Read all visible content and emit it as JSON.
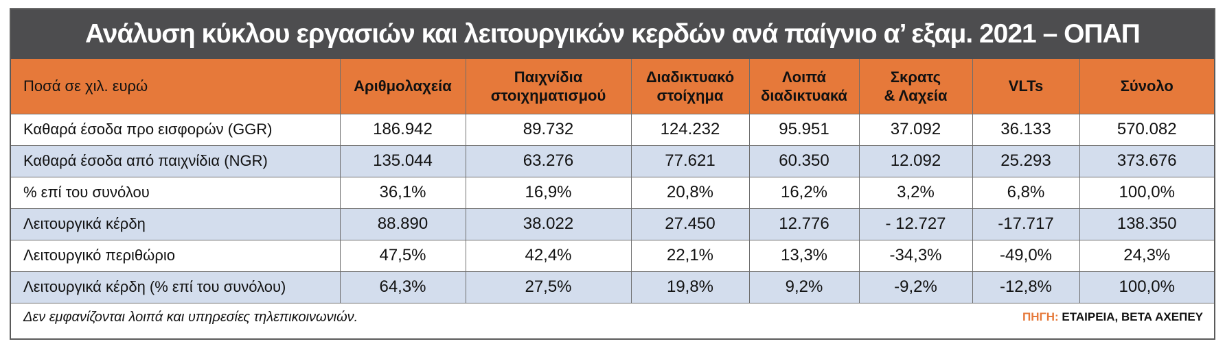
{
  "chart_data": {
    "type": "table",
    "title": "Ανάλυση κύκλου εργασιών και λειτουργικών κερδών ανά παίγνιο α’ εξαμ. 2021 – ΟΠΑΠ",
    "corner_label": "Ποσά σε χιλ. ευρώ",
    "columns": [
      {
        "line1": "Αριθμολαχεία",
        "line2": ""
      },
      {
        "line1": "Παιχνίδια",
        "line2": "στοιχηματισμού"
      },
      {
        "line1": "Διαδικτυακό",
        "line2": "στοίχημα"
      },
      {
        "line1": "Λοιπά",
        "line2": "διαδικτυακά"
      },
      {
        "line1": "Σκρατς",
        "line2": "& Λαχεία"
      },
      {
        "line1": "VLTs",
        "line2": ""
      },
      {
        "line1": "Σύνολο",
        "line2": ""
      }
    ],
    "rows": [
      {
        "label": "Καθαρά έσοδα προ εισφορών (GGR)",
        "values": [
          "186.942",
          "89.732",
          "124.232",
          "95.951",
          "37.092",
          "36.133",
          "570.082"
        ]
      },
      {
        "label": "Καθαρά έσοδα από παιχνίδια (NGR)",
        "values": [
          "135.044",
          "63.276",
          "77.621",
          "60.350",
          "12.092",
          "25.293",
          "373.676"
        ]
      },
      {
        "label": "% επί του συνόλου",
        "values": [
          "36,1%",
          "16,9%",
          "20,8%",
          "16,2%",
          "3,2%",
          "6,8%",
          "100,0%"
        ]
      },
      {
        "label": "Λειτουργικά κέρδη",
        "values": [
          "88.890",
          "38.022",
          "27.450",
          "12.776",
          "- 12.727",
          "-17.717",
          "138.350"
        ]
      },
      {
        "label": "Λειτουργικό περιθώριο",
        "values": [
          "47,5%",
          "42,4%",
          "22,1%",
          "13,3%",
          "-34,3%",
          "-49,0%",
          "24,3%"
        ]
      },
      {
        "label": "Λειτουργικά κέρδη (% επί του συνόλου)",
        "values": [
          "64,3%",
          "27,5%",
          "19,8%",
          "9,2%",
          "-9,2%",
          "-12,8%",
          "100,0%"
        ]
      }
    ],
    "note": "Δεν εμφανίζονται λοιπά και υπηρεσίες τηλεπικοινωνιών.",
    "source_label": "ΠΗΓΗ:",
    "source_text": "ΕΤΑΙΡΕΙΑ, ΒΕΤΑ ΑΧΕΠΕΥ",
    "colors": {
      "header_bg": "#e6793a",
      "title_bg": "#4d4d4f",
      "alt_row_bg": "#d3dded",
      "border": "#6d6d6d"
    }
  }
}
